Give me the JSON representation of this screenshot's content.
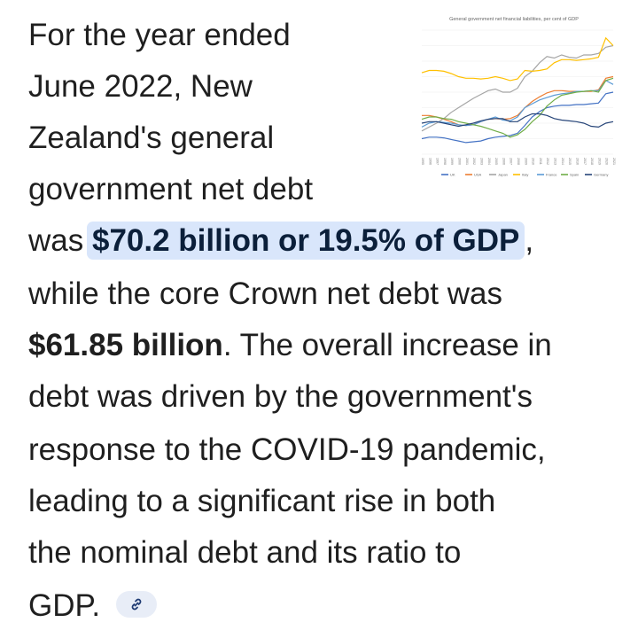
{
  "text": {
    "line1": "For the year ended",
    "line2": "June 2022, New",
    "line3": "Zealand's general",
    "line4": "government net debt",
    "line5_pre": "was",
    "line5_highlight": "$70.2 billion or 19.5% of GDP",
    "line5_post": ",",
    "line6": "while the core Crown net debt was",
    "line7_bold": "$61.85 billion",
    "line7_rest": ". The overall increase in",
    "line8": "debt was driven by the government's",
    "line9": "response to the COVID-19 pandemic,",
    "line10": "leading to a significant rise in both",
    "line11": "the nominal debt and its ratio to",
    "line12": "GDP."
  },
  "link_chip": {
    "icon": "link-icon"
  },
  "colors": {
    "highlight_bg": "#d9e6fb",
    "text": "#1f1f1f",
    "chip_bg": "#e8edf7"
  },
  "chart_data": {
    "type": "line",
    "title": "General government net financial liabilities, per cent of GDP",
    "x": [
      1995,
      1996,
      1997,
      1998,
      1999,
      2000,
      2001,
      2002,
      2003,
      2004,
      2005,
      2006,
      2007,
      2008,
      2009,
      2010,
      2011,
      2012,
      2013,
      2014,
      2015,
      2016,
      2017,
      2018,
      2019,
      2020,
      2021
    ],
    "ylim": [
      0,
      160
    ],
    "series": [
      {
        "name": "UK",
        "color": "#4472c4",
        "values": [
          20,
          22,
          22,
          21,
          19,
          17,
          15,
          16,
          17,
          20,
          22,
          23,
          24,
          27,
          37,
          48,
          55,
          60,
          62,
          63,
          63,
          64,
          64,
          65,
          66,
          78,
          80
        ]
      },
      {
        "name": "USA",
        "color": "#ed7d31",
        "values": [
          50,
          50,
          48,
          45,
          42,
          38,
          37,
          38,
          42,
          45,
          46,
          45,
          46,
          50,
          60,
          68,
          74,
          79,
          82,
          82,
          81,
          81,
          81,
          81,
          83,
          98,
          100
        ]
      },
      {
        "name": "Japan",
        "color": "#a5a5a5",
        "values": [
          30,
          35,
          40,
          46,
          54,
          60,
          66,
          72,
          77,
          82,
          84,
          80,
          80,
          85,
          100,
          107,
          118,
          126,
          124,
          128,
          125,
          124,
          128,
          128,
          130,
          138,
          140
        ]
      },
      {
        "name": "Italy",
        "color": "#ffc000",
        "values": [
          105,
          108,
          108,
          107,
          104,
          100,
          98,
          98,
          97,
          98,
          100,
          98,
          95,
          97,
          108,
          107,
          108,
          110,
          118,
          122,
          122,
          121,
          122,
          123,
          125,
          150,
          140
        ]
      },
      {
        "name": "France",
        "color": "#5b9bd5",
        "values": [
          35,
          40,
          42,
          41,
          40,
          38,
          37,
          38,
          42,
          45,
          48,
          44,
          43,
          48,
          60,
          65,
          70,
          73,
          76,
          78,
          79,
          81,
          81,
          82,
          82,
          95,
          90
        ]
      },
      {
        "name": "Spain",
        "color": "#70ad47",
        "values": [
          45,
          48,
          48,
          46,
          45,
          42,
          40,
          38,
          36,
          33,
          30,
          27,
          22,
          25,
          32,
          42,
          50,
          62,
          70,
          76,
          78,
          80,
          81,
          82,
          80,
          95,
          98
        ]
      },
      {
        "name": "Germany",
        "color": "#264478",
        "values": [
          40,
          42,
          42,
          40,
          38,
          36,
          38,
          40,
          43,
          45,
          46,
          46,
          42,
          42,
          48,
          52,
          52,
          50,
          46,
          44,
          43,
          42,
          40,
          36,
          35,
          40,
          42
        ]
      }
    ]
  }
}
